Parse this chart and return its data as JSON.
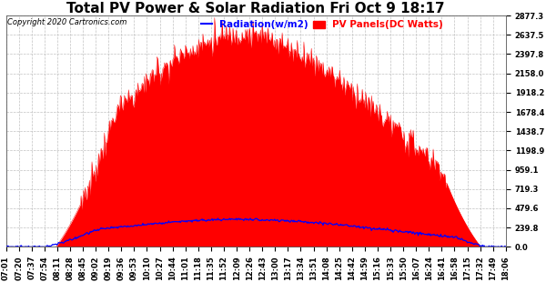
{
  "title": "Total PV Power & Solar Radiation Fri Oct 9 18:17",
  "copyright": "Copyright 2020 Cartronics.com",
  "legend_radiation": "Radiation(w/m2)",
  "legend_pv": "PV Panels(DC Watts)",
  "yticks": [
    0.0,
    239.8,
    479.6,
    719.3,
    959.1,
    1198.9,
    1438.7,
    1678.4,
    1918.2,
    2158.0,
    2397.8,
    2637.5,
    2877.3
  ],
  "xtick_labels": [
    "07:01",
    "07:20",
    "07:37",
    "07:54",
    "08:11",
    "08:28",
    "08:45",
    "09:02",
    "09:19",
    "09:36",
    "09:53",
    "10:10",
    "10:27",
    "10:44",
    "11:01",
    "11:18",
    "11:35",
    "11:52",
    "12:09",
    "12:26",
    "12:43",
    "13:00",
    "13:17",
    "13:34",
    "13:51",
    "14:08",
    "14:25",
    "14:42",
    "14:59",
    "15:16",
    "15:33",
    "15:50",
    "16:07",
    "16:24",
    "16:41",
    "16:58",
    "17:15",
    "17:32",
    "17:49",
    "18:06"
  ],
  "ymax": 2877.3,
  "ymin": 0.0,
  "pv_color": "#ff0000",
  "radiation_color": "#0000ff",
  "background_color": "#ffffff",
  "grid_color": "#aaaaaa",
  "title_fontsize": 11,
  "tick_fontsize": 6.0
}
